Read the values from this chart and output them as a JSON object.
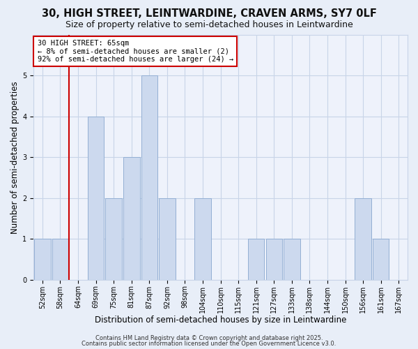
{
  "title": "30, HIGH STREET, LEINTWARDINE, CRAVEN ARMS, SY7 0LF",
  "subtitle": "Size of property relative to semi-detached houses in Leintwardine",
  "xlabel": "Distribution of semi-detached houses by size in Leintwardine",
  "ylabel": "Number of semi-detached properties",
  "bar_labels": [
    "52sqm",
    "58sqm",
    "64sqm",
    "69sqm",
    "75sqm",
    "81sqm",
    "87sqm",
    "92sqm",
    "98sqm",
    "104sqm",
    "110sqm",
    "115sqm",
    "121sqm",
    "127sqm",
    "133sqm",
    "138sqm",
    "144sqm",
    "150sqm",
    "156sqm",
    "161sqm",
    "167sqm"
  ],
  "bar_values": [
    1,
    1,
    0,
    4,
    2,
    3,
    5,
    2,
    0,
    2,
    0,
    0,
    1,
    1,
    1,
    0,
    0,
    0,
    2,
    1,
    0
  ],
  "bar_color": "#ccd9ee",
  "bar_edge_color": "#93afd4",
  "highlight_line_index": 2,
  "annotation_title": "30 HIGH STREET: 65sqm",
  "annotation_line1": "← 8% of semi-detached houses are smaller (2)",
  "annotation_line2": "92% of semi-detached houses are larger (24) →",
  "annotation_box_color": "#ffffff",
  "annotation_box_edge": "#cc0000",
  "highlight_line_color": "#cc0000",
  "ylim": [
    0,
    6
  ],
  "yticks": [
    0,
    1,
    2,
    3,
    4,
    5
  ],
  "grid_color": "#c8d4e8",
  "bg_color": "#e8eef8",
  "plot_bg_color": "#eef2fb",
  "footer1": "Contains HM Land Registry data © Crown copyright and database right 2025.",
  "footer2": "Contains public sector information licensed under the Open Government Licence v3.0.",
  "title_fontsize": 10.5,
  "subtitle_fontsize": 9,
  "axis_label_fontsize": 8.5,
  "tick_fontsize": 7,
  "annotation_fontsize": 7.5,
  "footer_fontsize": 6
}
